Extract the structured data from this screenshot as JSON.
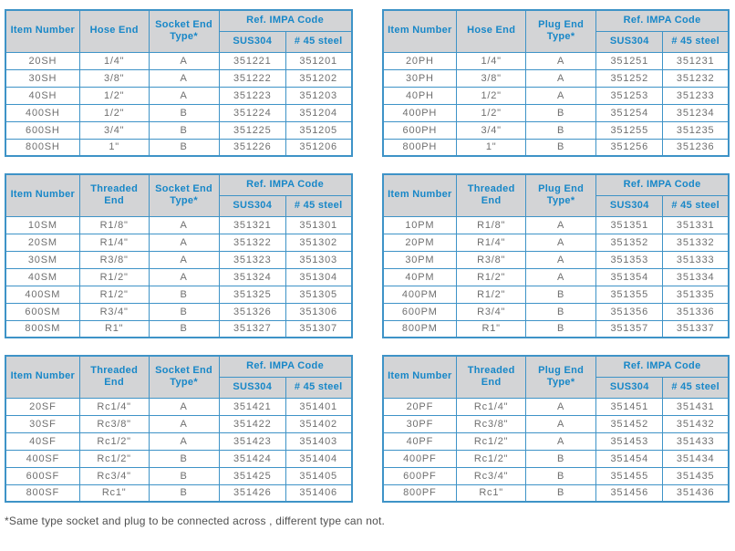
{
  "page": {
    "footnote": "*Same type socket and plug to be connected across , different type can not.",
    "colors": {
      "border": "#3e93c7",
      "header_text": "#1787c8",
      "header_bg": "#d3d4d6",
      "body_text": "#6f6f6f"
    }
  },
  "tables": [
    {
      "name": "socket-hose-end",
      "headers": [
        "Item Number",
        "Hose End",
        "Socket End\nType*",
        "Ref. IMPA Code",
        "SUS304",
        "# 45 steel"
      ],
      "rows": [
        [
          "20SH",
          "1/4\"",
          "A",
          "351221",
          "351201"
        ],
        [
          "30SH",
          "3/8\"",
          "A",
          "351222",
          "351202"
        ],
        [
          "40SH",
          "1/2\"",
          "A",
          "351223",
          "351203"
        ],
        [
          "400SH",
          "1/2\"",
          "B",
          "351224",
          "351204"
        ],
        [
          "600SH",
          "3/4\"",
          "B",
          "351225",
          "351205"
        ],
        [
          "800SH",
          "1\"",
          "B",
          "351226",
          "351206"
        ]
      ]
    },
    {
      "name": "plug-hose-end",
      "headers": [
        "Item Number",
        "Hose End",
        "Plug End\nType*",
        "Ref. IMPA Code",
        "SUS304",
        "# 45 steel"
      ],
      "rows": [
        [
          "20PH",
          "1/4\"",
          "A",
          "351251",
          "351231"
        ],
        [
          "30PH",
          "3/8\"",
          "A",
          "351252",
          "351232"
        ],
        [
          "40PH",
          "1/2\"",
          "A",
          "351253",
          "351233"
        ],
        [
          "400PH",
          "1/2\"",
          "B",
          "351254",
          "351234"
        ],
        [
          "600PH",
          "3/4\"",
          "B",
          "351255",
          "351235"
        ],
        [
          "800PH",
          "1\"",
          "B",
          "351256",
          "351236"
        ]
      ]
    },
    {
      "name": "socket-male-threaded-end",
      "headers": [
        "Item Number",
        "Threaded\nEnd",
        "Socket End\nType*",
        "Ref. IMPA Code",
        "SUS304",
        "# 45 steel"
      ],
      "rows": [
        [
          "10SM",
          "R1/8\"",
          "A",
          "351321",
          "351301"
        ],
        [
          "20SM",
          "R1/4\"",
          "A",
          "351322",
          "351302"
        ],
        [
          "30SM",
          "R3/8\"",
          "A",
          "351323",
          "351303"
        ],
        [
          "40SM",
          "R1/2\"",
          "A",
          "351324",
          "351304"
        ],
        [
          "400SM",
          "R1/2\"",
          "B",
          "351325",
          "351305"
        ],
        [
          "600SM",
          "R3/4\"",
          "B",
          "351326",
          "351306"
        ],
        [
          "800SM",
          "R1\"",
          "B",
          "351327",
          "351307"
        ]
      ]
    },
    {
      "name": "plug-male-threaded-end",
      "headers": [
        "Item Number",
        "Threaded\nEnd",
        "Plug End\nType*",
        "Ref. IMPA Code",
        "SUS304",
        "# 45 steel"
      ],
      "rows": [
        [
          "10PM",
          "R1/8\"",
          "A",
          "351351",
          "351331"
        ],
        [
          "20PM",
          "R1/4\"",
          "A",
          "351352",
          "351332"
        ],
        [
          "30PM",
          "R3/8\"",
          "A",
          "351353",
          "351333"
        ],
        [
          "40PM",
          "R1/2\"",
          "A",
          "351354",
          "351334"
        ],
        [
          "400PM",
          "R1/2\"",
          "B",
          "351355",
          "351335"
        ],
        [
          "600PM",
          "R3/4\"",
          "B",
          "351356",
          "351336"
        ],
        [
          "800PM",
          "R1\"",
          "B",
          "351357",
          "351337"
        ]
      ]
    },
    {
      "name": "socket-female-threaded-end",
      "headers": [
        "Item Number",
        "Threaded\nEnd",
        "Socket End\nType*",
        "Ref. IMPA Code",
        "SUS304",
        "# 45 steel"
      ],
      "rows": [
        [
          "20SF",
          "Rc1/4\"",
          "A",
          "351421",
          "351401"
        ],
        [
          "30SF",
          "Rc3/8\"",
          "A",
          "351422",
          "351402"
        ],
        [
          "40SF",
          "Rc1/2\"",
          "A",
          "351423",
          "351403"
        ],
        [
          "400SF",
          "Rc1/2\"",
          "B",
          "351424",
          "351404"
        ],
        [
          "600SF",
          "Rc3/4\"",
          "B",
          "351425",
          "351405"
        ],
        [
          "800SF",
          "Rc1\"",
          "B",
          "351426",
          "351406"
        ]
      ]
    },
    {
      "name": "plug-female-threaded-end",
      "headers": [
        "Item Number",
        "Threaded\nEnd",
        "Plug End\nType*",
        "Ref. IMPA Code",
        "SUS304",
        "# 45 steel"
      ],
      "rows": [
        [
          "20PF",
          "Rc1/4\"",
          "A",
          "351451",
          "351431"
        ],
        [
          "30PF",
          "Rc3/8\"",
          "A",
          "351452",
          "351432"
        ],
        [
          "40PF",
          "Rc1/2\"",
          "A",
          "351453",
          "351433"
        ],
        [
          "400PF",
          "Rc1/2\"",
          "B",
          "351454",
          "351434"
        ],
        [
          "600PF",
          "Rc3/4\"",
          "B",
          "351455",
          "351435"
        ],
        [
          "800PF",
          "Rc1\"",
          "B",
          "351456",
          "351436"
        ]
      ]
    }
  ]
}
